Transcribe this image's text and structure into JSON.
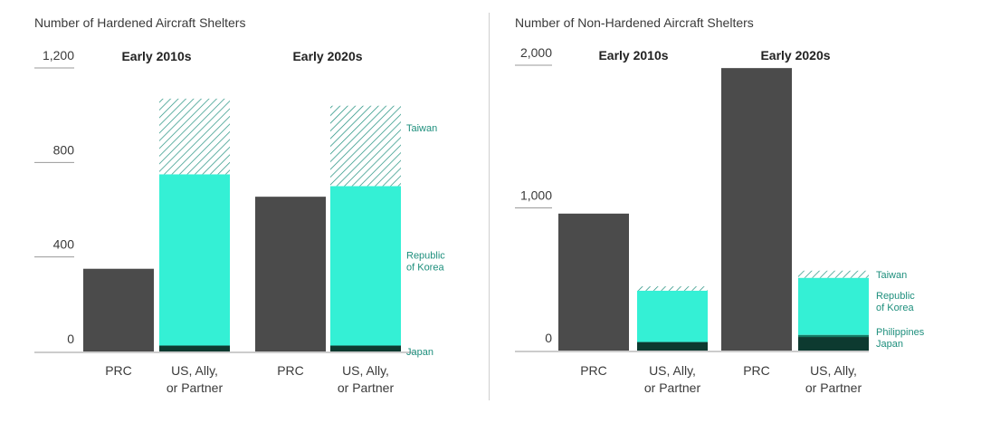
{
  "chart_data": [
    {
      "type": "bar",
      "title": "Number of Hardened Aircraft Shelters",
      "ylim": [
        0,
        1200
      ],
      "yticks": [
        "1,200",
        "800",
        "400",
        "0"
      ],
      "ytick_values": [
        1200,
        800,
        400,
        0
      ],
      "groups": [
        "Early 2010s",
        "Early 2020s"
      ],
      "categories": [
        "PRC",
        "US, Ally,\nor Partner"
      ],
      "stack_labels": [
        "Japan",
        "Republic\nof Korea",
        "Taiwan"
      ],
      "bars": [
        {
          "group": "Early 2010s",
          "category": "PRC",
          "segments": [
            {
              "series": "PRC",
              "value": 350
            }
          ]
        },
        {
          "group": "Early 2010s",
          "category": "US, Ally,\nor Partner",
          "segments": [
            {
              "series": "Japan",
              "value": 25
            },
            {
              "series": "Republic of Korea",
              "value": 725
            },
            {
              "series": "Taiwan",
              "value": 320
            }
          ]
        },
        {
          "group": "Early 2020s",
          "category": "PRC",
          "segments": [
            {
              "series": "PRC",
              "value": 655
            }
          ]
        },
        {
          "group": "Early 2020s",
          "category": "US, Ally,\nor Partner",
          "segments": [
            {
              "series": "Japan",
              "value": 25
            },
            {
              "series": "Republic of Korea",
              "value": 675
            },
            {
              "series": "Taiwan",
              "value": 340
            }
          ]
        }
      ]
    },
    {
      "type": "bar",
      "title": "Number of Non-Hardened Aircraft Shelters",
      "ylim": [
        0,
        2000
      ],
      "yticks": [
        "2,000",
        "1,000",
        "0"
      ],
      "ytick_values": [
        2000,
        1000,
        0
      ],
      "groups": [
        "Early 2010s",
        "Early 2020s"
      ],
      "categories": [
        "PRC",
        "US, Ally,\nor Partner"
      ],
      "stack_labels": [
        "Philippines\nJapan",
        "Republic\nof Korea",
        "Taiwan"
      ],
      "bars": [
        {
          "group": "Early 2010s",
          "category": "PRC",
          "segments": [
            {
              "series": "PRC",
              "value": 960
            }
          ]
        },
        {
          "group": "Early 2010s",
          "category": "US, Ally,\nor Partner",
          "segments": [
            {
              "series": "Japan",
              "value": 60
            },
            {
              "series": "Republic of Korea",
              "value": 360
            },
            {
              "series": "Taiwan",
              "value": 30
            }
          ]
        },
        {
          "group": "Early 2020s",
          "category": "PRC",
          "segments": [
            {
              "series": "PRC",
              "value": 1980
            }
          ]
        },
        {
          "group": "Early 2020s",
          "category": "US, Ally,\nor Partner",
          "segments": [
            {
              "series": "Japan",
              "value": 95
            },
            {
              "series": "Philippines",
              "value": 15
            },
            {
              "series": "Republic of Korea",
              "value": 400
            },
            {
              "series": "Taiwan",
              "value": 50
            }
          ]
        }
      ]
    }
  ],
  "colors": {
    "PRC": "#4b4b4b",
    "Japan": "#0d3a30",
    "Philippines": "#137a63",
    "Republic of Korea": "#34f0d5",
    "Taiwan": "#1e8f7d",
    "label": "#1e8f7d",
    "axis": "#9a9a9a"
  }
}
